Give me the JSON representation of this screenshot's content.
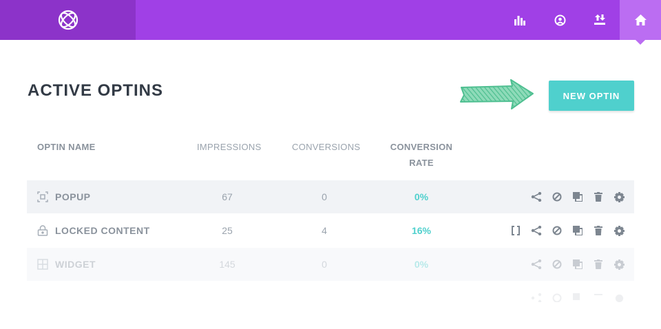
{
  "header": {
    "nav": [
      {
        "name": "stats-icon"
      },
      {
        "name": "account-icon"
      },
      {
        "name": "import-export-icon"
      },
      {
        "name": "home-icon",
        "active": true
      }
    ]
  },
  "page": {
    "title": "ACTIVE OPTINS",
    "new_button": "NEW OPTIN"
  },
  "table": {
    "headers": {
      "name": "OPTIN NAME",
      "impressions": "IMPRESSIONS",
      "conversions": "CONVERSIONS",
      "rate": "CONVERSION RATE"
    },
    "rows": [
      {
        "name": "POPUP",
        "impressions": "67",
        "conversions": "0",
        "rate": "0%",
        "icon": "popup-icon"
      },
      {
        "name": "LOCKED CONTENT",
        "impressions": "25",
        "conversions": "4",
        "rate": "16%",
        "icon": "lock-icon"
      },
      {
        "name": "WIDGET",
        "impressions": "145",
        "conversions": "0",
        "rate": "0%",
        "icon": "widget-icon"
      }
    ]
  },
  "colors": {
    "header_bg": "#a040e6",
    "logo_bg": "#8c33c9",
    "accent": "#4fd0cd",
    "title": "#323a45"
  }
}
